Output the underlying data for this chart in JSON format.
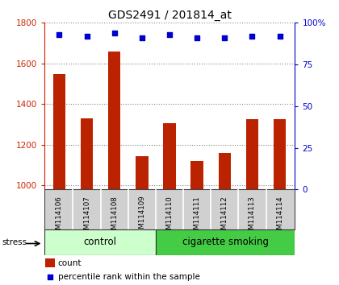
{
  "title": "GDS2491 / 201814_at",
  "samples": [
    "GSM114106",
    "GSM114107",
    "GSM114108",
    "GSM114109",
    "GSM114110",
    "GSM114111",
    "GSM114112",
    "GSM114113",
    "GSM114114"
  ],
  "counts": [
    1548,
    1330,
    1660,
    1145,
    1305,
    1120,
    1158,
    1325,
    1325
  ],
  "percentiles": [
    93,
    92,
    94,
    91,
    93,
    91,
    91,
    92,
    92
  ],
  "ylim_left": [
    980,
    1800
  ],
  "ylim_right": [
    0,
    100
  ],
  "yticks_left": [
    1000,
    1200,
    1400,
    1600,
    1800
  ],
  "yticks_right": [
    0,
    25,
    50,
    75,
    100
  ],
  "bar_color": "#bb2200",
  "dot_color": "#0000cc",
  "bar_width": 0.45,
  "group_control_color": "#ccffcc",
  "group_smoke_color": "#44cc44",
  "sample_label_bg": "#d0d0d0",
  "left_tick_color": "#cc2200",
  "right_tick_color": "#0000cc",
  "stress_label": "stress",
  "legend_count_label": "count",
  "legend_pct_label": "percentile rank within the sample",
  "fig_bg": "#ffffff"
}
